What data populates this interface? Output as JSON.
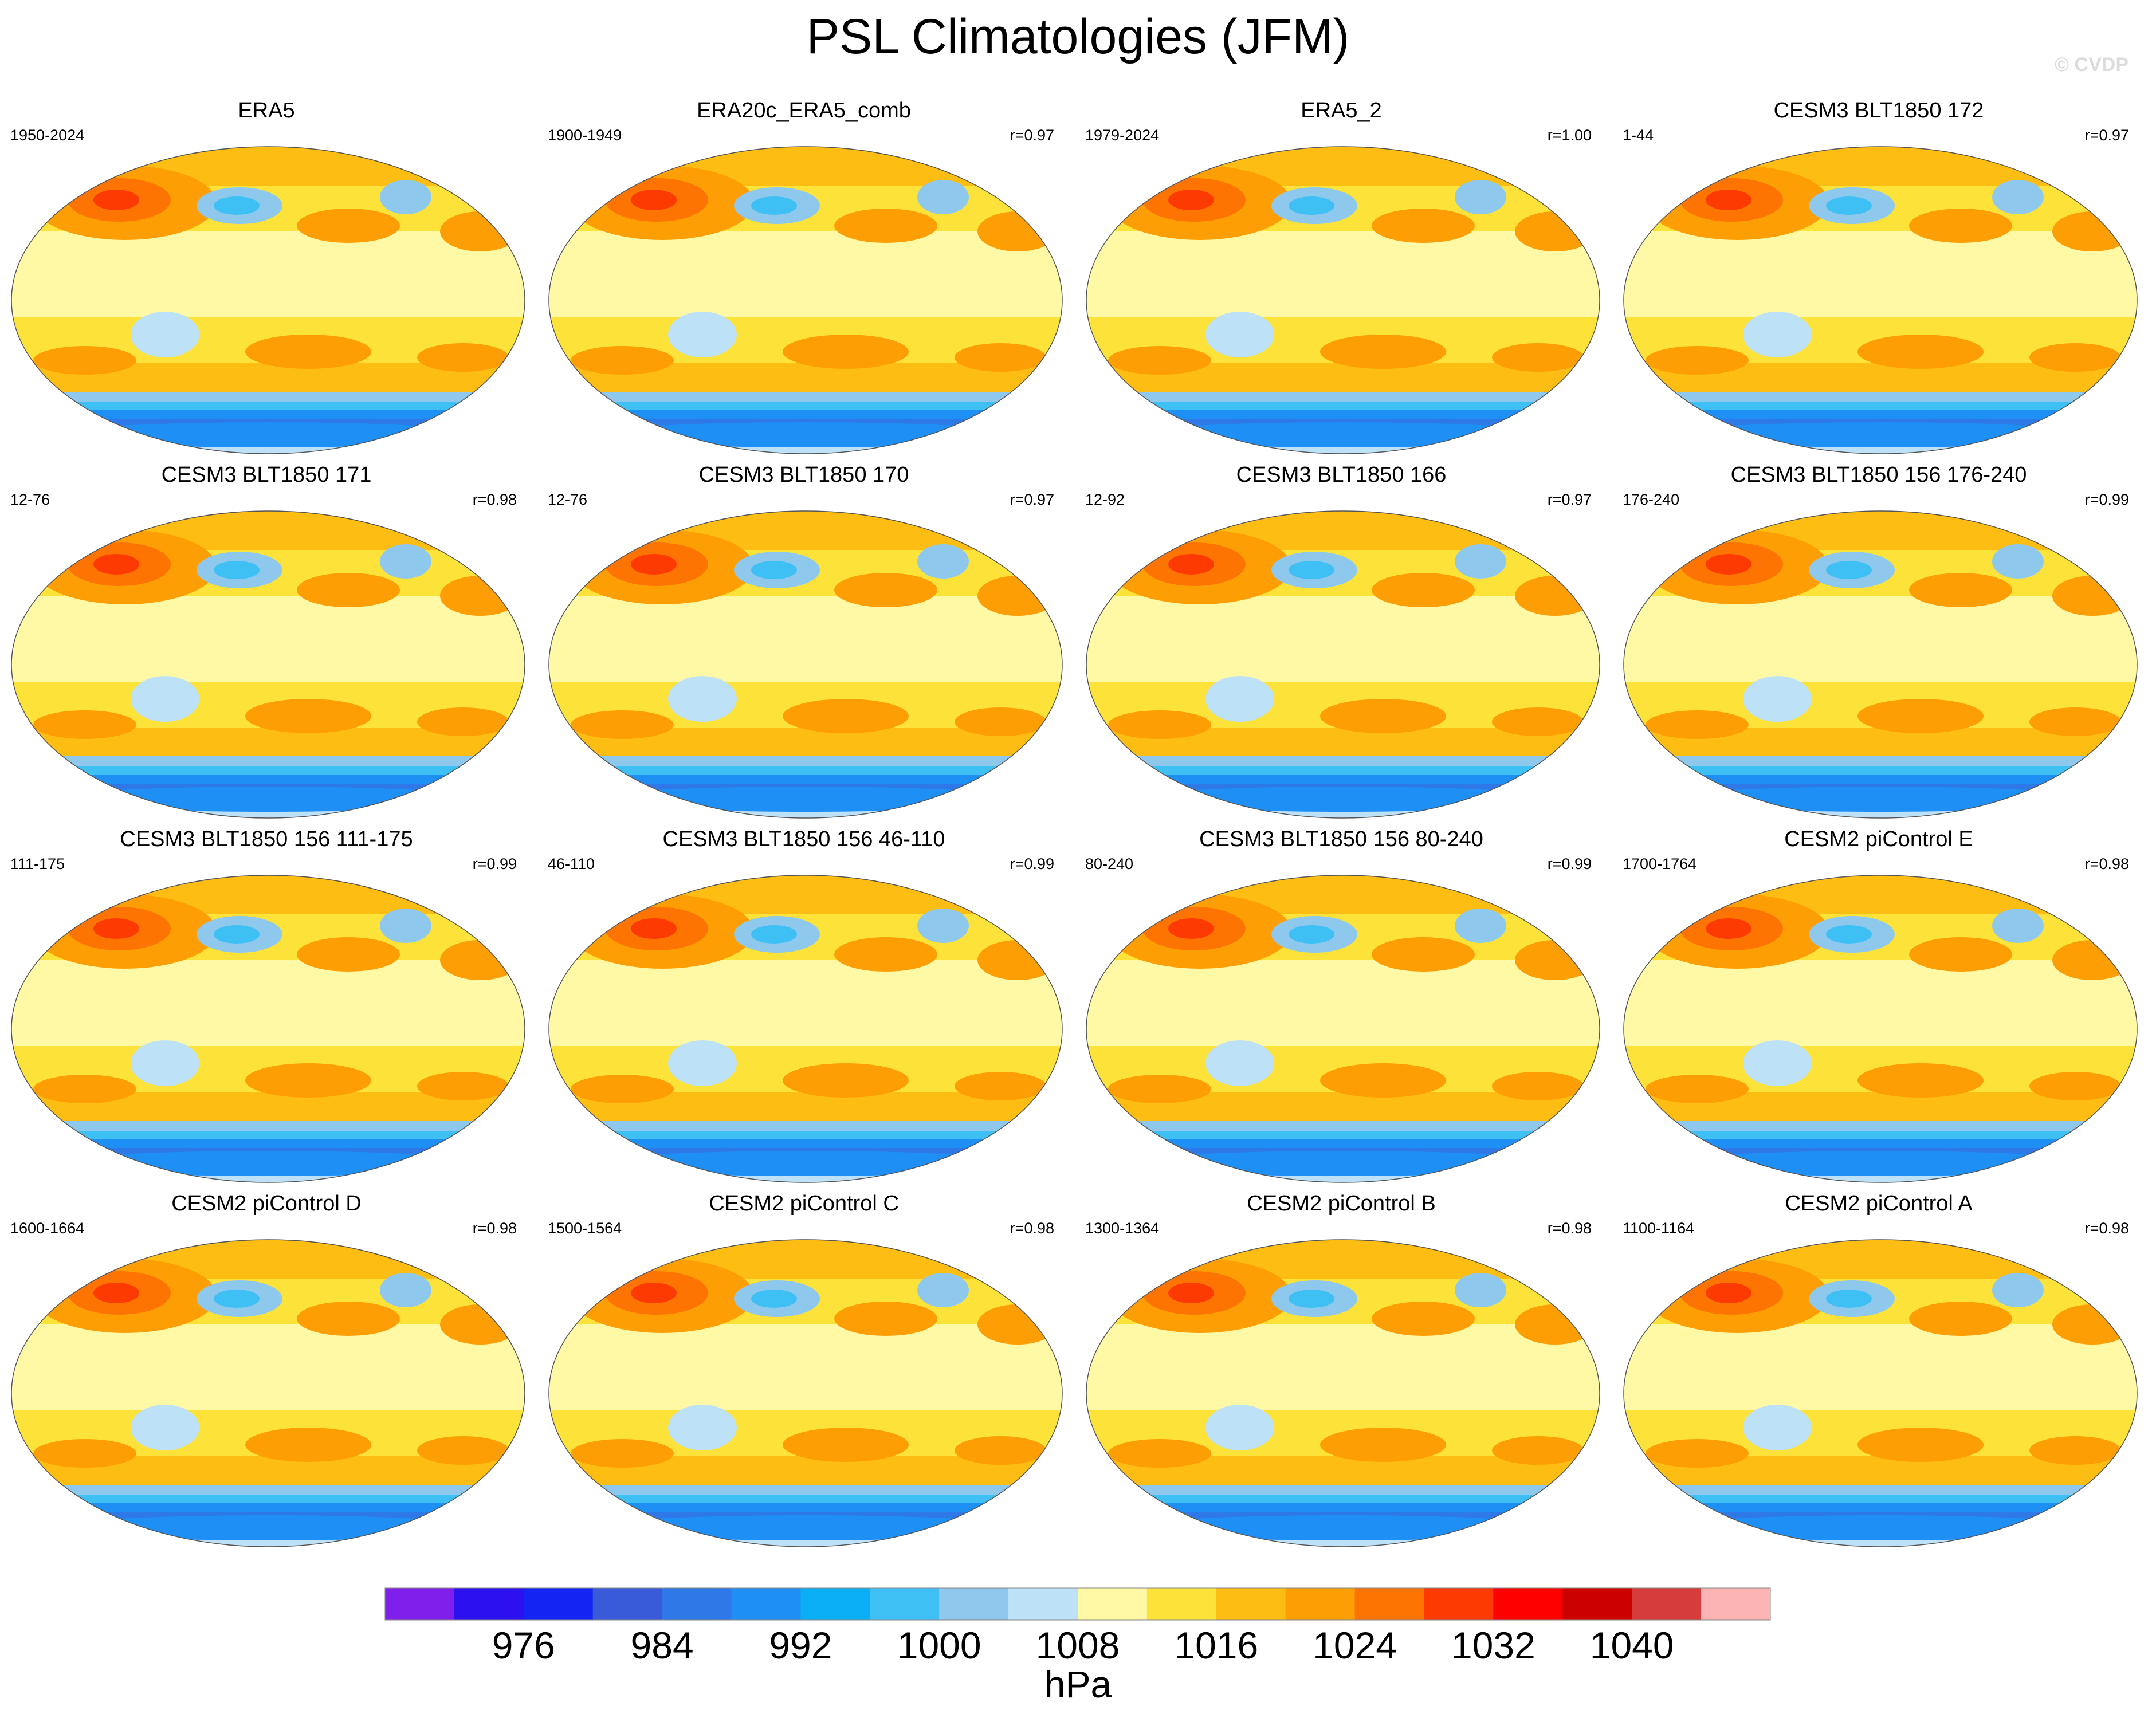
{
  "title": "PSL Climatologies (JFM)",
  "watermark": "© CVDP",
  "chart_data": {
    "type": "heatmap",
    "title": "PSL Climatologies (JFM)",
    "projection": "Robinson (global map panels)",
    "units": "hPa",
    "panels": [
      {
        "name": "ERA5",
        "years": "1950-2024",
        "r": ""
      },
      {
        "name": "ERA20c_ERA5_comb",
        "years": "1900-1949",
        "r": "r=0.97"
      },
      {
        "name": "ERA5_2",
        "years": "1979-2024",
        "r": "r=1.00"
      },
      {
        "name": "CESM3 BLT1850 172",
        "years": "1-44",
        "r": "r=0.97"
      },
      {
        "name": "CESM3 BLT1850 171",
        "years": "12-76",
        "r": "r=0.98"
      },
      {
        "name": "CESM3 BLT1850 170",
        "years": "12-76",
        "r": "r=0.97"
      },
      {
        "name": "CESM3 BLT1850 166",
        "years": "12-92",
        "r": "r=0.97"
      },
      {
        "name": "CESM3 BLT1850 156 176-240",
        "years": "176-240",
        "r": "r=0.99"
      },
      {
        "name": "CESM3 BLT1850 156 111-175",
        "years": "111-175",
        "r": "r=0.99"
      },
      {
        "name": "CESM3 BLT1850 156 46-110",
        "years": "46-110",
        "r": "r=0.99"
      },
      {
        "name": "CESM3 BLT1850 156 80-240",
        "years": "80-240",
        "r": "r=0.99"
      },
      {
        "name": "CESM2 piControl E",
        "years": "1700-1764",
        "r": "r=0.98"
      },
      {
        "name": "CESM2 piControl D",
        "years": "1600-1664",
        "r": "r=0.98"
      },
      {
        "name": "CESM2 piControl C",
        "years": "1500-1564",
        "r": "r=0.98"
      },
      {
        "name": "CESM2 piControl B",
        "years": "1300-1364",
        "r": "r=0.98"
      },
      {
        "name": "CESM2 piControl A",
        "years": "1100-1164",
        "r": "r=0.98"
      }
    ],
    "colorbar": {
      "unit": "hPa",
      "tick_labels": [
        "976",
        "984",
        "992",
        "1000",
        "1008",
        "1016",
        "1024",
        "1032",
        "1040"
      ],
      "tick_boundary_index": [
        2,
        4,
        6,
        8,
        10,
        12,
        14,
        16,
        18
      ],
      "colors": [
        "#7f1fec",
        "#2d10f0",
        "#1424f2",
        "#3a5bd9",
        "#2f78e8",
        "#1e8ff5",
        "#0aaff5",
        "#3fc0f5",
        "#8ec9ed",
        "#bde2f7",
        "#fff9a6",
        "#fde23a",
        "#fdbd12",
        "#fd9e04",
        "#fe7402",
        "#fe3a03",
        "#fe0000",
        "#cd0000",
        "#d63c3c",
        "#fcb4b4"
      ]
    }
  }
}
